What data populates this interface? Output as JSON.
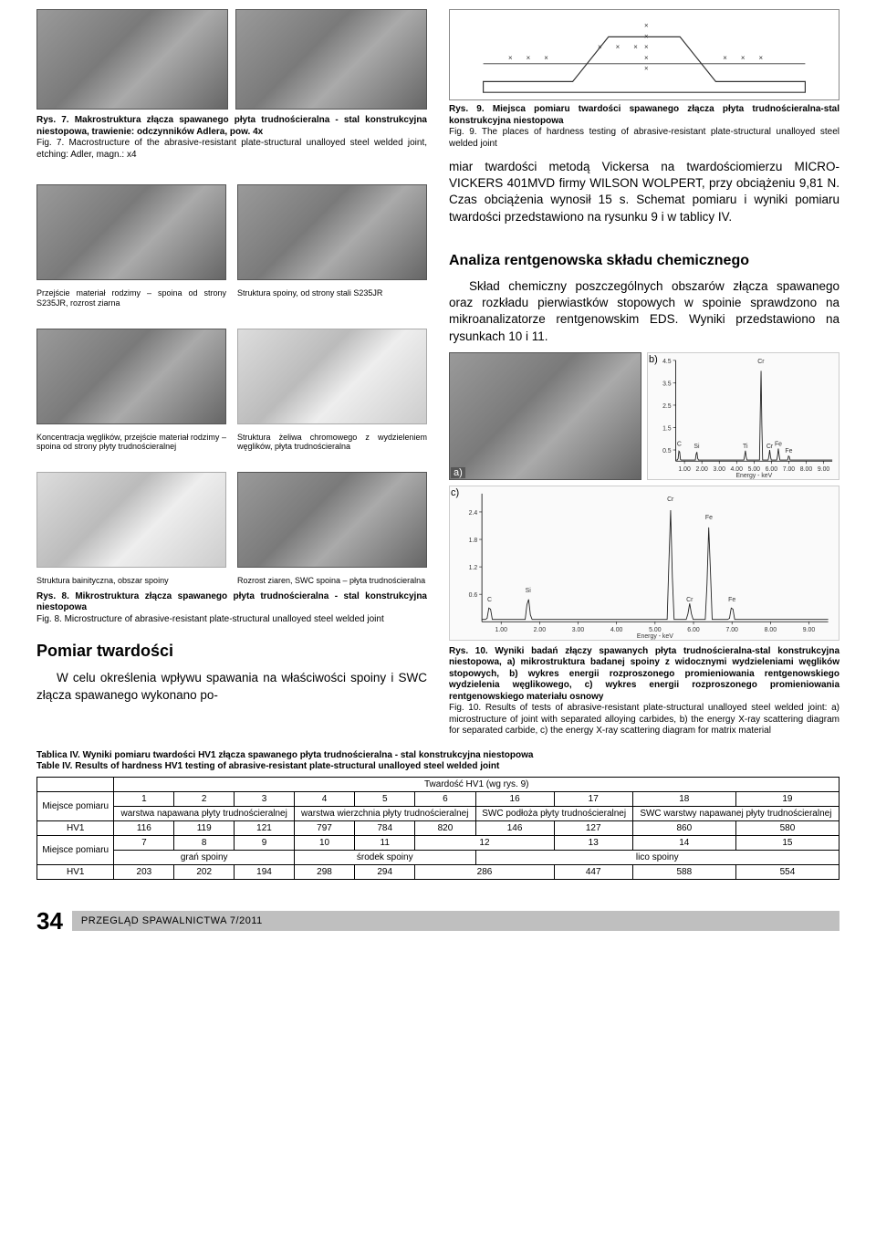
{
  "left": {
    "fig7": {
      "caption_pl": "Rys. 7. Makrostruktura złącza spawanego płyta trudnościeralna - stal konstrukcyjna niestopowa, trawienie: odczynników Adlera, pow. 4x",
      "caption_en": "Fig. 7. Macrostructure of the abrasive-resistant plate-structural unalloyed steel welded joint, etching: Adler, magn.: x4"
    },
    "micro": {
      "pairs": [
        {
          "left": "Przejście materiał rodzimy – spoina od strony S235JR, rozrost ziarna",
          "right": "Struktura spoiny, od strony stali S235JR"
        },
        {
          "left": "Koncentracja węglików, przejście materiał rodzimy – spoina od strony płyty trudnościeralnej",
          "right": "Struktura żeliwa chromowego z wydzieleniem węglików, płyta trudnościeralna"
        },
        {
          "left": "Struktura bainityczna, obszar spoiny",
          "right": "Rozrost ziaren, SWC spoina – płyta trudnościeralna"
        }
      ]
    },
    "fig8": {
      "caption_pl": "Rys. 8. Mikrostruktura złącza spawanego płyta trudnościeralna - stal konstrukcyjna niestopowa",
      "caption_en": "Fig. 8. Microstructure of abrasive-resistant plate-structural unalloyed steel welded joint"
    },
    "section_hardness_title": "Pomiar twardości",
    "hardness_para": "W celu określenia wpływu spawania na właściwości spoiny i SWC złącza spawanego wykonano po-"
  },
  "right": {
    "fig9": {
      "caption_pl": "Rys. 9. Miejsca pomiaru twardości spawanego złącza płyta trudnościeralna-stal konstrukcyjna niestopowa",
      "caption_en": "Fig. 9. The places of hardness testing of abrasive-resistant plate-structural unalloyed steel welded joint"
    },
    "para1": "miar twardości metodą Vickersa na twardościomierzu MICRO-VICKERS 401MVD firmy WILSON WOLPERT, przy obciążeniu 9,81 N. Czas obciążenia wynosił 15 s. Schemat pomiaru i wyniki pomiaru twardości przedstawiono na rysunku 9 i w tablicy IV.",
    "section_chem_title": "Analiza rentgenowska składu chemicznego",
    "para2": "Skład chemiczny poszczególnych obszarów złącza spawanego oraz rozkładu pierwiastków stopowych w spoinie sprawdzono na mikroanalizatorze rentgenowskim EDS. Wyniki przedstawiono na rysunkach 10 i 11.",
    "labels": {
      "a": "a)",
      "b": "b)",
      "c": "c)"
    },
    "fig10": {
      "caption_pl": "Rys. 10. Wyniki badań złączy spawanych płyta trudnościeralna-stal konstrukcyjna niestopowa, a) mikrostruktura badanej spoiny z widocznymi wydzieleniami węglików stopowych, b) wykres energii rozproszonego promieniowania rentgenowskiego wydzielenia węglikowego, c) wykres energii rozproszonego promieniowania rentgenowskiego materiału osnowy",
      "caption_en": "Fig. 10. Results of tests of abrasive-resistant plate-structural unalloyed steel welded joint: a) microstructure of joint with separated alloying carbides, b) the energy X-ray scattering diagram for separated carbide, c) the energy X-ray scattering diagram for matrix material"
    },
    "spectrum_b": {
      "ylim": [
        0,
        4.5
      ],
      "xlim": [
        0.5,
        9.5
      ],
      "yticks": [
        0.5,
        1.5,
        2.5,
        3.5,
        4.5
      ],
      "xticks": [
        1,
        2,
        3,
        4,
        5,
        6,
        7,
        8,
        9
      ],
      "peaks": [
        {
          "x": 0.7,
          "h": 0.6,
          "label": "C"
        },
        {
          "x": 1.7,
          "h": 0.5,
          "label": "Si"
        },
        {
          "x": 4.5,
          "h": 0.5,
          "label": "Ti"
        },
        {
          "x": 5.4,
          "h": 4.3,
          "label": "Cr"
        },
        {
          "x": 5.9,
          "h": 0.5,
          "label": "Cr"
        },
        {
          "x": 6.4,
          "h": 0.6,
          "label": "Fe"
        },
        {
          "x": 7.0,
          "h": 0.3,
          "label": "Fe"
        }
      ],
      "line_color": "#222",
      "bg": "#fafafa",
      "axis_color": "#000",
      "xlabel": "Energy - keV"
    },
    "spectrum_c": {
      "ylim": [
        0,
        2.8
      ],
      "xlim": [
        0.5,
        9.5
      ],
      "yticks": [
        0.6,
        1.2,
        1.8,
        2.4
      ],
      "xticks": [
        1,
        2,
        3,
        4,
        5,
        6,
        7,
        8,
        9
      ],
      "peaks": [
        {
          "x": 0.7,
          "h": 0.4,
          "label": "C"
        },
        {
          "x": 1.7,
          "h": 0.6,
          "label": "Si"
        },
        {
          "x": 5.4,
          "h": 2.6,
          "label": "Cr"
        },
        {
          "x": 5.9,
          "h": 0.4,
          "label": "Cr"
        },
        {
          "x": 6.4,
          "h": 2.2,
          "label": "Fe"
        },
        {
          "x": 7.0,
          "h": 0.4,
          "label": "Fe"
        }
      ],
      "line_color": "#222",
      "bg": "#fafafa",
      "axis_color": "#000",
      "xlabel": "Energy - keV"
    }
  },
  "table": {
    "title_pl": "Tablica IV. Wyniki pomiaru twardości HV1 złącza spawanego płyta trudnościeralna - stal konstrukcyjna niestopowa",
    "title_en": "Table IV. Results of hardness HV1 testing of abrasive-resistant plate-structural unalloyed steel welded joint",
    "super_header": "Twardość HV1 (wg rys. 9)",
    "row_label": "Miejsce pomiaru",
    "hv_label": "HV1",
    "top": {
      "nums": [
        "1",
        "2",
        "3",
        "4",
        "5",
        "6",
        "16",
        "17",
        "18",
        "19"
      ],
      "groups": [
        {
          "label": "warstwa napawana płyty trudnościeralnej",
          "span": 3
        },
        {
          "label": "warstwa wierzchnia płyty trudnościeralnej",
          "span": 3
        },
        {
          "label": "SWC podłoża płyty trudnościeralnej",
          "span": 2
        },
        {
          "label": "SWC warstwy napawanej płyty trudnościeralnej",
          "span": 2
        }
      ],
      "values": [
        "116",
        "119",
        "121",
        "797",
        "784",
        "820",
        "146",
        "127",
        "860",
        "580"
      ]
    },
    "bottom": {
      "nums": [
        "7",
        "8",
        "9",
        "10",
        "11",
        "12",
        "13",
        "14",
        "15"
      ],
      "groups": [
        {
          "label": "grań spoiny",
          "span": 3
        },
        {
          "label": "środek spoiny",
          "span": 3
        },
        {
          "label": "lico spoiny",
          "span": 3
        }
      ],
      "values": [
        "203",
        "202",
        "194",
        "298",
        "294",
        "286",
        "447",
        "588",
        "554"
      ]
    }
  },
  "footer": {
    "page": "34",
    "journal": "PRZEGLĄD  SPAWALNICTWA  7/2011"
  }
}
